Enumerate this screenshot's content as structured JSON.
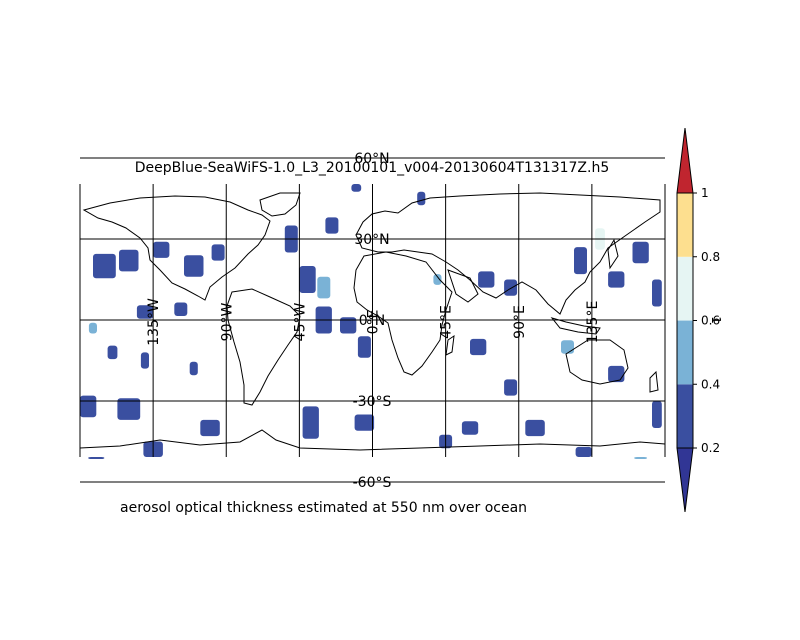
{
  "figure": {
    "title": "DeepBlue-SeaWiFS-1.0_L3_20100101_v004-20130604T131317Z.h5",
    "caption": "aerosol optical thickness estimated at 550 nm over ocean"
  },
  "chart_data": {
    "type": "heatmap",
    "projection": "equirectangular",
    "lon_range": [
      -180,
      180
    ],
    "lat_range": [
      -90,
      90
    ],
    "grid": true,
    "meridians": [
      {
        "lon": -180,
        "label": ""
      },
      {
        "lon": -135,
        "label": "135°W"
      },
      {
        "lon": -90,
        "label": "90°W"
      },
      {
        "lon": -45,
        "label": "45°W"
      },
      {
        "lon": 0,
        "label": "0°E"
      },
      {
        "lon": 45,
        "label": "45°E"
      },
      {
        "lon": 90,
        "label": "90°E"
      },
      {
        "lon": 135,
        "label": "135°E"
      },
      {
        "lon": 180,
        "label": ""
      }
    ],
    "parallels": [
      {
        "lat": 60,
        "label": "60°N"
      },
      {
        "lat": 30,
        "label": "30°N"
      },
      {
        "lat": 0,
        "label": "0°N"
      },
      {
        "lat": -30,
        "label": "-30°S"
      },
      {
        "lat": -60,
        "label": "-60°S"
      }
    ],
    "colorbar": {
      "label": "1",
      "position": "right",
      "extend": "both",
      "ticks": [
        "0.2",
        "0.4",
        "0.6",
        "0.8",
        "1"
      ],
      "levels": [
        0.2,
        0.4,
        0.6,
        0.8,
        1.0
      ],
      "colors": [
        "#3a4fa0",
        "#7ab2d6",
        "#e6f5f3",
        "#fddf8f",
        "#f07c4a"
      ],
      "under_color": "#313695",
      "over_color": "#c0252f"
    },
    "aod_patches": [
      {
        "lon": -165,
        "lat": 20,
        "w": 14,
        "h": 9,
        "v": 0.3
      },
      {
        "lon": -150,
        "lat": 22,
        "w": 12,
        "h": 8,
        "v": 0.3
      },
      {
        "lon": -130,
        "lat": 26,
        "w": 10,
        "h": 6,
        "v": 0.3
      },
      {
        "lon": -110,
        "lat": 20,
        "w": 12,
        "h": 8,
        "v": 0.3
      },
      {
        "lon": -95,
        "lat": 25,
        "w": 8,
        "h": 6,
        "v": 0.3
      },
      {
        "lon": -140,
        "lat": 3,
        "w": 10,
        "h": 5,
        "v": 0.3
      },
      {
        "lon": -118,
        "lat": 4,
        "w": 8,
        "h": 5,
        "v": 0.3
      },
      {
        "lon": -172,
        "lat": -3,
        "w": 5,
        "h": 4,
        "v": 0.5
      },
      {
        "lon": -160,
        "lat": -12,
        "w": 6,
        "h": 5,
        "v": 0.3
      },
      {
        "lon": -140,
        "lat": -15,
        "w": 5,
        "h": 6,
        "v": 0.3
      },
      {
        "lon": -110,
        "lat": -18,
        "w": 5,
        "h": 5,
        "v": 0.3
      },
      {
        "lon": -175,
        "lat": -32,
        "w": 10,
        "h": 8,
        "v": 0.3
      },
      {
        "lon": -150,
        "lat": -33,
        "w": 14,
        "h": 8,
        "v": 0.3
      },
      {
        "lon": -100,
        "lat": -40,
        "w": 12,
        "h": 6,
        "v": 0.3
      },
      {
        "lon": -135,
        "lat": -50,
        "w": 12,
        "h": 10,
        "v": 0.3
      },
      {
        "lon": -170,
        "lat": -58,
        "w": 10,
        "h": 3,
        "v": 0.3
      },
      {
        "lon": -50,
        "lat": 30,
        "w": 8,
        "h": 10,
        "v": 0.3
      },
      {
        "lon": -40,
        "lat": 15,
        "w": 10,
        "h": 10,
        "v": 0.3
      },
      {
        "lon": -30,
        "lat": 12,
        "w": 8,
        "h": 8,
        "v": 0.5
      },
      {
        "lon": -25,
        "lat": 35,
        "w": 8,
        "h": 6,
        "v": 0.3
      },
      {
        "lon": -30,
        "lat": 0,
        "w": 10,
        "h": 10,
        "v": 0.3
      },
      {
        "lon": -15,
        "lat": -2,
        "w": 10,
        "h": 6,
        "v": 0.3
      },
      {
        "lon": -5,
        "lat": -10,
        "w": 8,
        "h": 8,
        "v": 0.3
      },
      {
        "lon": -38,
        "lat": -38,
        "w": 10,
        "h": 12,
        "v": 0.3
      },
      {
        "lon": -5,
        "lat": -38,
        "w": 12,
        "h": 6,
        "v": 0.3
      },
      {
        "lon": -10,
        "lat": 50,
        "w": 6,
        "h": 5,
        "v": 0.3
      },
      {
        "lon": 30,
        "lat": 45,
        "w": 5,
        "h": 5,
        "v": 0.3
      },
      {
        "lon": 70,
        "lat": 15,
        "w": 10,
        "h": 6,
        "v": 0.3
      },
      {
        "lon": 85,
        "lat": 12,
        "w": 8,
        "h": 6,
        "v": 0.3
      },
      {
        "lon": 40,
        "lat": 15,
        "w": 5,
        "h": 4,
        "v": 0.5
      },
      {
        "lon": 65,
        "lat": -10,
        "w": 10,
        "h": 6,
        "v": 0.3
      },
      {
        "lon": 85,
        "lat": -25,
        "w": 8,
        "h": 6,
        "v": 0.3
      },
      {
        "lon": 60,
        "lat": -40,
        "w": 10,
        "h": 5,
        "v": 0.3
      },
      {
        "lon": 100,
        "lat": -40,
        "w": 12,
        "h": 6,
        "v": 0.3
      },
      {
        "lon": 45,
        "lat": -45,
        "w": 8,
        "h": 5,
        "v": 0.3
      },
      {
        "lon": 128,
        "lat": 22,
        "w": 8,
        "h": 10,
        "v": 0.3
      },
      {
        "lon": 140,
        "lat": 30,
        "w": 6,
        "h": 8,
        "v": 0.6
      },
      {
        "lon": 150,
        "lat": 15,
        "w": 10,
        "h": 6,
        "v": 0.3
      },
      {
        "lon": 165,
        "lat": 25,
        "w": 10,
        "h": 8,
        "v": 0.3
      },
      {
        "lon": 175,
        "lat": 10,
        "w": 6,
        "h": 10,
        "v": 0.3
      },
      {
        "lon": 120,
        "lat": -10,
        "w": 8,
        "h": 5,
        "v": 0.5
      },
      {
        "lon": 150,
        "lat": -20,
        "w": 10,
        "h": 6,
        "v": 0.3
      },
      {
        "lon": 175,
        "lat": -35,
        "w": 6,
        "h": 10,
        "v": 0.3
      },
      {
        "lon": 130,
        "lat": -50,
        "w": 10,
        "h": 6,
        "v": 0.3
      },
      {
        "lon": 165,
        "lat": -62,
        "w": 8,
        "h": 3,
        "v": 0.5
      }
    ]
  }
}
